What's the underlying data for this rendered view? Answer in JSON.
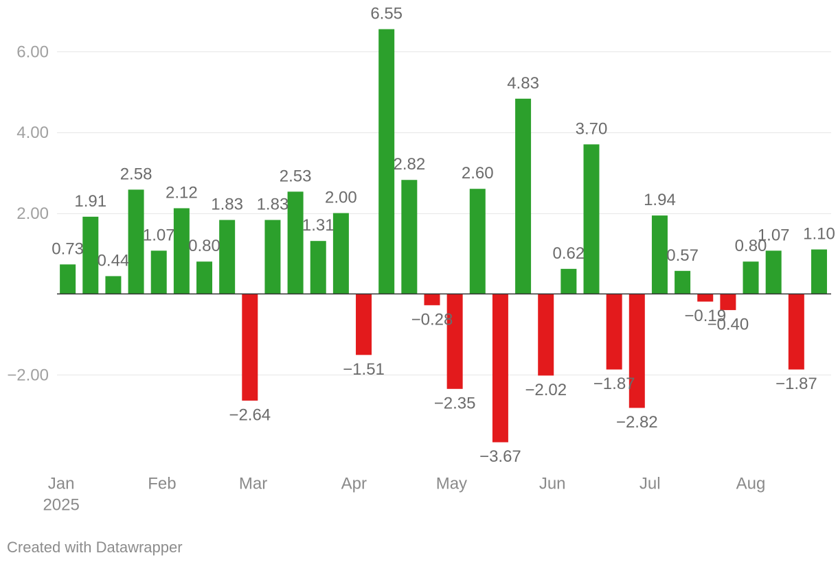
{
  "footer": {
    "credit": "Created with Datawrapper"
  },
  "colors": {
    "positive": "#2ca02c",
    "negative": "#e31a1c",
    "gridline": "#e6e6e6",
    "baseline": "#333333"
  },
  "chart_data": {
    "type": "bar",
    "x": [
      2,
      9,
      16,
      23,
      30,
      37,
      44,
      51,
      58,
      65,
      72,
      79,
      86,
      93,
      100,
      107,
      114,
      121,
      128,
      135,
      142,
      149,
      156,
      163,
      170,
      177,
      184,
      191,
      198,
      205,
      212,
      219,
      226,
      233
    ],
    "values": [
      0.73,
      1.91,
      0.44,
      2.58,
      1.07,
      2.12,
      0.8,
      1.83,
      -2.64,
      1.83,
      2.53,
      1.31,
      2.0,
      -1.51,
      6.55,
      2.82,
      -0.28,
      -2.35,
      2.6,
      -3.67,
      4.83,
      -2.02,
      0.62,
      3.7,
      -1.87,
      -2.82,
      1.94,
      0.57,
      -0.19,
      -0.4,
      0.8,
      1.07,
      -1.87,
      1.1
    ],
    "labels": [
      "0.73",
      "1.91",
      "0.44",
      "2.58",
      "1.07",
      "2.12",
      "0.80",
      "1.83",
      "−2.64",
      "1.83",
      "2.53",
      "1.31",
      "2.00",
      "−1.51",
      "6.55",
      "2.82",
      "−0.28",
      "−2.35",
      "2.60",
      "−3.67",
      "4.83",
      "−2.02",
      "0.62",
      "3.70",
      "−1.87",
      "−2.82",
      "1.94",
      "0.57",
      "−0.19",
      "−0.40",
      "0.80",
      "1.07",
      "−1.87",
      "1.10"
    ],
    "baseline": 0,
    "xlim": [
      -1.3,
      236.7
    ],
    "ylim": [
      -4,
      7
    ],
    "grid": true,
    "y_ticks": [
      {
        "value": 6,
        "label": "6.00"
      },
      {
        "value": 4,
        "label": "4.00"
      },
      {
        "value": 2,
        "label": "2.00"
      },
      {
        "value": -2,
        "label": "−2.00"
      }
    ],
    "x_ticks": [
      {
        "value": 0,
        "label": "Jan",
        "sublabel": "2025"
      },
      {
        "value": 31,
        "label": "Feb"
      },
      {
        "value": 59,
        "label": "Mar"
      },
      {
        "value": 90,
        "label": "Apr"
      },
      {
        "value": 120,
        "label": "May"
      },
      {
        "value": 151,
        "label": "Jun"
      },
      {
        "value": 181,
        "label": "Jul"
      },
      {
        "value": 212,
        "label": "Aug"
      }
    ]
  }
}
